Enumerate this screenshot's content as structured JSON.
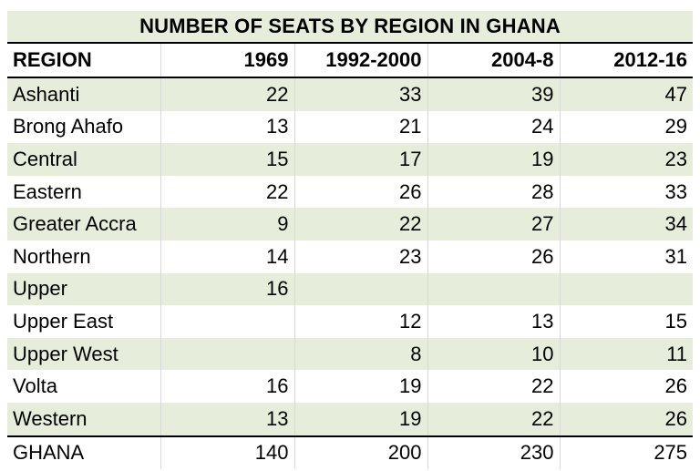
{
  "table": {
    "title": "NUMBER OF SEATS BY REGION IN GHANA",
    "headers": [
      "REGION",
      "1969",
      "1992-2000",
      "2004-8",
      "2012-16"
    ],
    "rows": [
      {
        "region": "Ashanti",
        "values": [
          "22",
          "33",
          "39",
          "47"
        ]
      },
      {
        "region": "Brong Ahafo",
        "values": [
          "13",
          "21",
          "24",
          "29"
        ]
      },
      {
        "region": "Central",
        "values": [
          "15",
          "17",
          "19",
          "23"
        ]
      },
      {
        "region": "Eastern",
        "values": [
          "22",
          "26",
          "28",
          "33"
        ]
      },
      {
        "region": "Greater Accra",
        "values": [
          "9",
          "22",
          "27",
          "34"
        ]
      },
      {
        "region": "Northern",
        "values": [
          "14",
          "23",
          "26",
          "31"
        ]
      },
      {
        "region": "Upper",
        "values": [
          "16",
          "",
          "",
          ""
        ]
      },
      {
        "region": "Upper East",
        "values": [
          "",
          "12",
          "13",
          "15"
        ]
      },
      {
        "region": "Upper West",
        "values": [
          "",
          "8",
          "10",
          "11"
        ]
      },
      {
        "region": "Volta",
        "values": [
          "16",
          "19",
          "22",
          "26"
        ]
      },
      {
        "region": "Western",
        "values": [
          "13",
          "19",
          "22",
          "26"
        ]
      }
    ],
    "total": {
      "region": "GHANA",
      "values": [
        "140",
        "200",
        "230",
        "275"
      ]
    }
  },
  "colors": {
    "band": "#e6eedb",
    "rule": "#000000",
    "divider": "#d8d8d8"
  }
}
